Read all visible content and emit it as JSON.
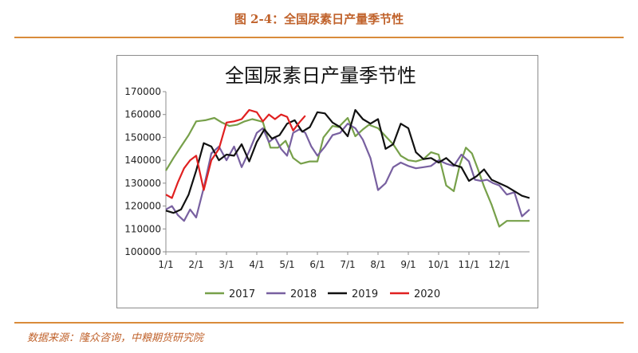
{
  "figure_title": "图 2-4：全国尿素日产量季节性",
  "source_text": "数据来源：隆众咨询，中粮期货研究院",
  "chart_data": {
    "type": "line",
    "title": "全国尿素日产量季节性",
    "xlabel": "",
    "ylabel": "",
    "ylim": [
      100000,
      170000
    ],
    "yticks": [
      "100000",
      "110000",
      "120000",
      "130000",
      "140000",
      "150000",
      "160000",
      "170000"
    ],
    "xlim": [
      1,
      13
    ],
    "xticks": [
      "1/1",
      "2/1",
      "3/1",
      "4/1",
      "5/1",
      "6/1",
      "7/1",
      "8/1",
      "9/1",
      "10/1",
      "11/1",
      "12/1"
    ],
    "grid": false,
    "legend_position": "bottom",
    "series": [
      {
        "name": "2017",
        "color": "#77a04a",
        "x": [
          1.0,
          1.25,
          1.5,
          1.75,
          2.0,
          2.3,
          2.6,
          2.85,
          3.1,
          3.35,
          3.6,
          3.85,
          4.0,
          4.2,
          4.45,
          4.7,
          4.95,
          5.2,
          5.45,
          5.75,
          6.0,
          6.2,
          6.5,
          6.7,
          7.0,
          7.25,
          7.5,
          7.7,
          8.0,
          8.25,
          8.5,
          8.75,
          9.0,
          9.25,
          9.5,
          9.75,
          10.0,
          10.25,
          10.5,
          10.7,
          10.9,
          11.1,
          11.3,
          11.5,
          11.75,
          12.0,
          12.25,
          12.5,
          12.75,
          13.0
        ],
        "values": [
          135500,
          141000,
          146000,
          151000,
          157000,
          157500,
          158500,
          156500,
          155000,
          155500,
          157000,
          158000,
          157500,
          156800,
          145500,
          145500,
          148500,
          141000,
          138500,
          139500,
          139500,
          150000,
          155000,
          154500,
          158500,
          150500,
          153500,
          155500,
          154000,
          150500,
          147000,
          142000,
          140000,
          139500,
          140500,
          143500,
          142500,
          129000,
          126500,
          138000,
          145500,
          143000,
          136000,
          128500,
          120500,
          111000,
          113500,
          113500,
          113500,
          113500
        ]
      },
      {
        "name": "2018",
        "color": "#7860a0",
        "x": [
          1.0,
          1.2,
          1.4,
          1.6,
          1.8,
          2.0,
          2.25,
          2.5,
          2.75,
          3.0,
          3.25,
          3.5,
          3.75,
          4.0,
          4.2,
          4.4,
          4.6,
          4.8,
          5.0,
          5.2,
          5.4,
          5.6,
          5.8,
          6.0,
          6.25,
          6.5,
          6.75,
          7.0,
          7.25,
          7.5,
          7.75,
          8.0,
          8.25,
          8.5,
          8.75,
          9.0,
          9.25,
          9.5,
          9.75,
          10.0,
          10.25,
          10.5,
          10.75,
          11.0,
          11.2,
          11.4,
          11.6,
          11.8,
          12.0,
          12.25,
          12.5,
          12.75,
          13.0
        ],
        "values": [
          118500,
          120000,
          116000,
          113500,
          118500,
          115000,
          128000,
          143000,
          146000,
          140000,
          146000,
          137000,
          144000,
          152000,
          154000,
          148000,
          150000,
          145000,
          142000,
          152000,
          153500,
          152000,
          146000,
          142000,
          146000,
          151000,
          152000,
          156000,
          154000,
          149000,
          141000,
          127000,
          130000,
          137000,
          139000,
          137500,
          136500,
          137000,
          137500,
          140000,
          138500,
          137500,
          142500,
          139500,
          131500,
          131000,
          131500,
          130000,
          129000,
          125000,
          126000,
          115500,
          118500
        ]
      },
      {
        "name": "2019",
        "color": "#111111",
        "x": [
          1.0,
          1.25,
          1.5,
          1.75,
          2.0,
          2.25,
          2.5,
          2.75,
          3.0,
          3.25,
          3.5,
          3.75,
          4.0,
          4.25,
          4.5,
          4.75,
          5.0,
          5.25,
          5.5,
          5.75,
          6.0,
          6.25,
          6.5,
          6.75,
          7.0,
          7.25,
          7.5,
          7.75,
          8.0,
          8.25,
          8.5,
          8.75,
          9.0,
          9.25,
          9.5,
          9.75,
          10.0,
          10.25,
          10.5,
          10.75,
          11.0,
          11.25,
          11.5,
          11.75,
          12.0,
          12.25,
          12.5,
          12.75,
          13.0
        ],
        "values": [
          118000,
          117000,
          118500,
          125000,
          135500,
          147500,
          146000,
          140000,
          142500,
          142000,
          147000,
          139500,
          148000,
          153500,
          149500,
          151000,
          156000,
          157500,
          152500,
          154500,
          161000,
          160500,
          156500,
          154500,
          150500,
          162000,
          158000,
          156000,
          158000,
          145000,
          147000,
          156000,
          154000,
          143500,
          140500,
          141000,
          139000,
          141000,
          138000,
          137000,
          131000,
          133000,
          136000,
          131500,
          130000,
          128500,
          126500,
          124500,
          123500
        ]
      },
      {
        "name": "2020",
        "color": "#e02020",
        "x": [
          1.0,
          1.2,
          1.4,
          1.6,
          1.8,
          2.0,
          2.25,
          2.5,
          2.75,
          3.0,
          3.25,
          3.5,
          3.75,
          4.0,
          4.2,
          4.4,
          4.6,
          4.8,
          5.0,
          5.2,
          5.4,
          5.6
        ],
        "values": [
          125000,
          123500,
          130500,
          136500,
          140000,
          142000,
          127000,
          140000,
          145000,
          156500,
          157000,
          158000,
          162000,
          161000,
          157000,
          160000,
          158000,
          160000,
          159000,
          153000,
          156500,
          159500
        ]
      }
    ]
  }
}
